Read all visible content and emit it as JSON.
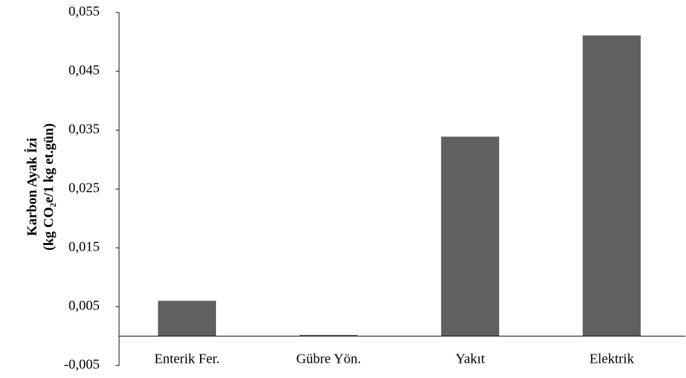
{
  "chart_data": {
    "type": "bar",
    "y_label": [
      "Karbon Ayak İzi",
      "(kg CO₂e/1 kg et.gün)"
    ],
    "categories": [
      "Enterik Fer.",
      "Gübre Yön.",
      "Yakıt",
      "Elektrik"
    ],
    "values": [
      0.006,
      0.0002,
      0.0339,
      0.0511
    ],
    "color": "#606060",
    "ylim": [
      -0.005,
      0.055
    ],
    "yticks": [
      {
        "value": -0.005,
        "label": "-0,005"
      },
      {
        "value": 0.005,
        "label": "0,005"
      },
      {
        "value": 0.015,
        "label": "0,015"
      },
      {
        "value": 0.025,
        "label": "0,025"
      },
      {
        "value": 0.035,
        "label": "0,035"
      },
      {
        "value": 0.045,
        "label": "0,045"
      },
      {
        "value": 0.055,
        "label": "0,055"
      }
    ],
    "grid": false
  }
}
